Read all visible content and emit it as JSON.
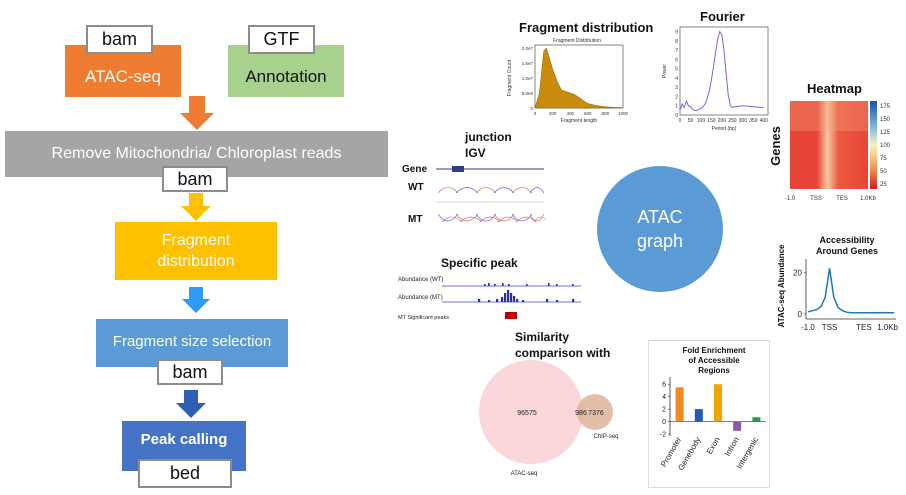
{
  "pipeline": {
    "bam_top": "bam",
    "gtf": "GTF",
    "atac_seq": "ATAC-seq",
    "annotation": "Annotation",
    "remove_reads": "Remove Mitochondria/ Chloroplast reads",
    "bam_mid": "bam",
    "fragment_distribution": "Fragment distribution",
    "fragment_size_selection": "Fragment size selection",
    "bam_low": "bam",
    "peak_calling": "Peak calling",
    "bed": "bed"
  },
  "center": {
    "label": "ATAC graph"
  },
  "panels": {
    "fragment": {
      "title": "Fragment distribution",
      "inner_title": "Fragment Distribution",
      "xlabel": "Fragment length",
      "ylabel": "Fragment Count",
      "yticks": [
        "2.0e7",
        "1.5e7",
        "1.0e7",
        "5.0e6",
        "0"
      ],
      "xticks": [
        "0",
        "200",
        "400",
        "600",
        "800",
        "1000"
      ]
    },
    "fourier": {
      "title": "Fourier",
      "xlabel": "Period (bp)",
      "ylabel": "Power",
      "yticks": [
        "9",
        "8",
        "7",
        "6",
        "5",
        "4",
        "3",
        "2",
        "1",
        "0"
      ],
      "xticks": [
        "0",
        "50",
        "100",
        "150",
        "200",
        "250",
        "300",
        "350",
        "400"
      ]
    },
    "heatmap": {
      "title": "Heatmap",
      "ylabel": "Genes",
      "cbar": [
        "175",
        "150",
        "125",
        "100",
        "75",
        "50",
        "25"
      ],
      "xticks": [
        "-1.0",
        "TSS",
        "TES",
        "1.0Kb"
      ]
    },
    "junction": {
      "title_1": "junction",
      "title_2": "IGV",
      "tracks": [
        "Gene",
        "WT",
        "MT"
      ]
    },
    "specific_peak": {
      "title": "Specific peak",
      "tracks": [
        "Abundance (WT)",
        "Abundance (MT)",
        "MT Significant peaks"
      ]
    },
    "accessibility": {
      "title_1": "Accessibility",
      "title_2": "Around Genes",
      "ylabel": "ATAC-seq Abundance",
      "yticks": [
        "20",
        "0"
      ],
      "xticks": [
        "-1.0",
        "TSS",
        "TES",
        "1.0Kb"
      ]
    },
    "similarity": {
      "title_1": "Similarity",
      "title_2": "comparison with",
      "left": "96575",
      "overlap": "986",
      "right": "7376",
      "label_left": "ATAC-seq",
      "label_right": "ChIP-seq"
    },
    "fold": {
      "title_1": "Fold Enrichment",
      "title_2": "of Accessible",
      "title_3": "Regions",
      "yticks": [
        "6",
        "4",
        "2",
        "0",
        "-2"
      ]
    }
  },
  "chart_data": [
    {
      "type": "bar",
      "categories": [
        "Promoter",
        "Genebody",
        "Exon",
        "Intron",
        "Intergenic"
      ],
      "values": [
        5.5,
        2.0,
        6.0,
        -1.5,
        0.7
      ],
      "colors": [
        "#f08a24",
        "#1f5fb5",
        "#f0a500",
        "#8e5aa8",
        "#2aa045"
      ],
      "ylim": [
        -2,
        7
      ]
    },
    {
      "type": "line",
      "x": [
        -1.0,
        -0.8,
        -0.6,
        -0.4,
        -0.2,
        -0.1,
        0,
        0.1,
        0.2,
        0.4,
        0.6,
        0.8,
        1.0,
        1.5,
        2.0,
        2.5,
        3.0
      ],
      "values": [
        1.0,
        1.5,
        2.0,
        3.5,
        8,
        15,
        22,
        15,
        8,
        3,
        1.5,
        0.8,
        0.5,
        0.5,
        0.5,
        0.6,
        0.5
      ],
      "ylim": [
        -2,
        25
      ]
    },
    {
      "type": "line",
      "x": [
        0,
        10,
        20,
        30,
        40,
        50,
        60,
        70,
        80,
        90,
        100,
        110,
        120,
        130,
        140,
        150,
        160,
        170,
        180,
        190,
        200,
        210,
        220,
        230,
        240,
        250,
        260,
        300,
        350,
        400
      ],
      "values": [
        0.5,
        1.2,
        0.8,
        1.5,
        1.0,
        0.9,
        0.6,
        0.5,
        0.5,
        0.6,
        0.7,
        0.9,
        1.2,
        1.8,
        2.6,
        3.8,
        5.2,
        6.8,
        8.2,
        9.0,
        8.6,
        7.0,
        4.5,
        2.2,
        1.0,
        0.8,
        0.9,
        1.0,
        0.9,
        0.8
      ],
      "ylim": [
        0,
        9.5
      ]
    },
    {
      "type": "area",
      "x": [
        0,
        50,
        100,
        130,
        160,
        200,
        250,
        300,
        350,
        400,
        450,
        500,
        550,
        600,
        700,
        800,
        900,
        1000
      ],
      "values": [
        0,
        5000000.0,
        19000000.0,
        20000000.0,
        17000000.0,
        13000000.0,
        9000000.0,
        6000000.0,
        5500000.0,
        5000000.0,
        4500000.0,
        3500000.0,
        2500000.0,
        1500000.0,
        800000.0,
        400000.0,
        200000.0,
        100000.0
      ],
      "ylim": [
        0,
        21000000.0
      ]
    }
  ]
}
